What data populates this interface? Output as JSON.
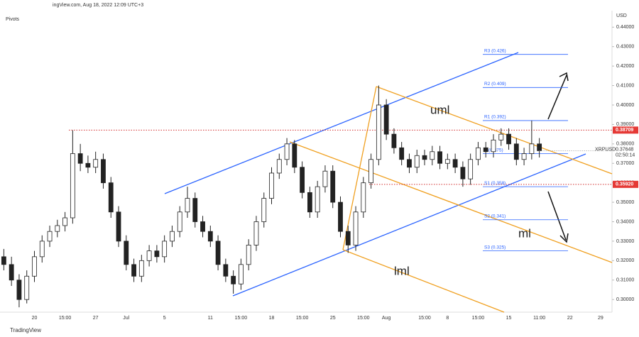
{
  "chart_data": {
    "type": "candlestick",
    "source": "ingView.com, Aug 18, 2022 12:09 UTC+3",
    "indicator": "Pivots",
    "currency": "USD",
    "symbol": "XRPUSD",
    "last_price": {
      "value": 0.37648,
      "label": "0.37648"
    },
    "countdown": "02:50:14",
    "logo": "TradingView",
    "categories": [
      null,
      null,
      null,
      null,
      "20",
      null,
      null,
      null,
      "15:00",
      null,
      null,
      null,
      "27",
      null,
      null,
      null,
      "Jul",
      null,
      null,
      null,
      null,
      "5",
      null,
      null,
      null,
      null,
      null,
      "11",
      null,
      null,
      null,
      "15:00",
      null,
      null,
      null,
      "18",
      null,
      null,
      null,
      "15:00",
      null,
      null,
      null,
      "25",
      null,
      null,
      null,
      "15:00",
      null,
      null,
      "Aug",
      null,
      null,
      null,
      null,
      "15:00",
      null,
      null,
      "8",
      null,
      null,
      null,
      "15:00",
      null,
      null,
      null,
      "15",
      null,
      null,
      null,
      "11:00",
      null,
      null,
      null,
      "22",
      null,
      null,
      null,
      "29",
      null
    ],
    "open": [
      0.322,
      0.318,
      0.31,
      0.3,
      0.312,
      0.322,
      0.33,
      0.335,
      0.338,
      0.342,
      0.375,
      0.37,
      0.368,
      0.372,
      0.36,
      0.345,
      0.33,
      0.318,
      0.312,
      0.32,
      0.325,
      0.322,
      0.33,
      0.335,
      0.345,
      0.352,
      0.34,
      0.335,
      0.33,
      0.318,
      0.312,
      0.308,
      0.318,
      0.328,
      0.34,
      0.352,
      0.365,
      0.372,
      0.38,
      0.368,
      0.355,
      0.345,
      0.358,
      0.366,
      0.35,
      0.335,
      0.328,
      0.345,
      0.36,
      0.372,
      0.4,
      0.385,
      0.378,
      0.372,
      0.368,
      0.374,
      0.372,
      0.376,
      0.37,
      0.372,
      0.368,
      0.362,
      0.372,
      0.378,
      0.376,
      0.382,
      0.385,
      0.38,
      0.372,
      0.375,
      0.38,
      null,
      null,
      null,
      null,
      null,
      null,
      null,
      null,
      null
    ],
    "high": [
      0.326,
      0.322,
      0.313,
      0.315,
      0.325,
      0.333,
      0.338,
      0.341,
      0.345,
      0.387,
      0.38,
      0.374,
      0.376,
      0.375,
      0.363,
      0.348,
      0.333,
      0.321,
      0.323,
      0.328,
      0.328,
      0.333,
      0.338,
      0.348,
      0.358,
      0.355,
      0.343,
      0.338,
      0.333,
      0.321,
      0.315,
      0.321,
      0.331,
      0.343,
      0.355,
      0.368,
      0.375,
      0.383,
      0.382,
      0.371,
      0.358,
      0.361,
      0.369,
      0.369,
      0.353,
      0.338,
      0.348,
      0.363,
      0.375,
      0.41,
      0.403,
      0.388,
      0.381,
      0.375,
      0.377,
      0.377,
      0.379,
      0.379,
      0.375,
      0.375,
      0.371,
      0.375,
      0.381,
      0.381,
      0.385,
      0.388,
      0.388,
      0.383,
      0.378,
      0.392,
      0.383,
      null,
      null,
      null,
      null,
      null,
      null,
      null,
      null,
      null
    ],
    "low": [
      0.315,
      0.307,
      0.296,
      0.298,
      0.309,
      0.319,
      0.327,
      0.332,
      0.335,
      0.339,
      0.366,
      0.365,
      0.365,
      0.357,
      0.342,
      0.327,
      0.315,
      0.309,
      0.309,
      0.317,
      0.319,
      0.319,
      0.327,
      0.332,
      0.342,
      0.337,
      0.332,
      0.327,
      0.315,
      0.309,
      0.303,
      0.305,
      0.315,
      0.325,
      0.337,
      0.349,
      0.362,
      0.369,
      0.365,
      0.352,
      0.342,
      0.342,
      0.355,
      0.347,
      0.332,
      0.324,
      0.325,
      0.342,
      0.357,
      0.369,
      0.382,
      0.375,
      0.369,
      0.365,
      0.365,
      0.369,
      0.369,
      0.367,
      0.367,
      0.365,
      0.358,
      0.359,
      0.369,
      0.373,
      0.373,
      0.379,
      0.377,
      0.369,
      0.369,
      0.372,
      0.373,
      null,
      null,
      null,
      null,
      null,
      null,
      null,
      null,
      null
    ],
    "close": [
      0.318,
      0.31,
      0.3,
      0.312,
      0.322,
      0.33,
      0.335,
      0.338,
      0.342,
      0.375,
      0.37,
      0.368,
      0.372,
      0.36,
      0.345,
      0.33,
      0.318,
      0.312,
      0.32,
      0.325,
      0.322,
      0.33,
      0.335,
      0.345,
      0.352,
      0.34,
      0.335,
      0.33,
      0.318,
      0.312,
      0.308,
      0.318,
      0.328,
      0.34,
      0.352,
      0.365,
      0.372,
      0.38,
      0.368,
      0.355,
      0.345,
      0.358,
      0.366,
      0.35,
      0.335,
      0.328,
      0.345,
      0.36,
      0.372,
      0.4,
      0.385,
      0.378,
      0.372,
      0.368,
      0.374,
      0.372,
      0.376,
      0.37,
      0.372,
      0.368,
      0.362,
      0.372,
      0.378,
      0.376,
      0.382,
      0.385,
      0.38,
      0.372,
      0.375,
      0.38,
      0.3765,
      null,
      null,
      null,
      null,
      null,
      null,
      null,
      null,
      null
    ],
    "ylim": [
      0.2935,
      0.4485
    ],
    "yticks": [
      {
        "value": 0.3,
        "label": "0.30000"
      },
      {
        "value": 0.31,
        "label": "0.31000"
      },
      {
        "value": 0.32,
        "label": "0.32000"
      },
      {
        "value": 0.33,
        "label": "0.33000"
      },
      {
        "value": 0.34,
        "label": "0.34000"
      },
      {
        "value": 0.35,
        "label": "0.35000"
      },
      {
        "value": 0.36,
        "label": "0.36000"
      },
      {
        "value": 0.37,
        "label": "0.37000"
      },
      {
        "value": 0.38,
        "label": "0.38000"
      },
      {
        "value": 0.39,
        "label": "0.39000"
      },
      {
        "value": 0.4,
        "label": "0.40000"
      },
      {
        "value": 0.41,
        "label": "0.41000"
      },
      {
        "value": 0.42,
        "label": "0.42000"
      },
      {
        "value": 0.43,
        "label": "0.43000"
      },
      {
        "value": 0.44,
        "label": "0.44000"
      }
    ],
    "levels": [
      {
        "value": 0.38709,
        "label": "0.38709"
      },
      {
        "value": 0.3592,
        "label": "0.35920"
      }
    ],
    "pivots": [
      {
        "value": 0.426,
        "label": "R3 (0.426)"
      },
      {
        "value": 0.409,
        "label": "R2 (0.409)"
      },
      {
        "value": 0.392,
        "label": "R1 (0.392)"
      },
      {
        "value": 0.375,
        "label": "P (0.375)"
      },
      {
        "value": 0.358,
        "label": "S1 (0.358)"
      },
      {
        "value": 0.341,
        "label": "S2 (0.341)"
      },
      {
        "value": 0.325,
        "label": "S3 (0.325)"
      }
    ],
    "annotations": [
      "uml",
      "ml",
      "lml"
    ]
  }
}
